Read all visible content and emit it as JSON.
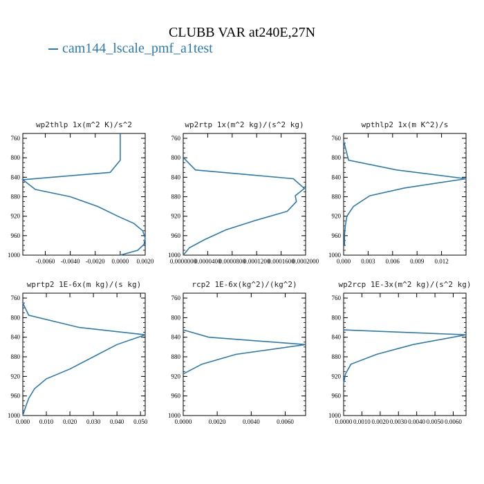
{
  "figure": {
    "title": "CLUBB VAR at240E,27N",
    "legend": [
      {
        "label": "cam144_lscale_pmf_a1test",
        "color": "#2a7ab0"
      }
    ],
    "line_color": "#2a7ab0"
  },
  "chart_data": [
    {
      "type": "line",
      "title": "wp2thlp  1x(m^2 K)/s^2",
      "xlim": [
        -0.0078,
        0.002
      ],
      "ylim": [
        1000,
        750
      ],
      "x_ticks": [
        -0.006,
        -0.004,
        -0.002,
        0.0,
        0.002
      ],
      "x_tick_labels": [
        "-0.0060",
        "-0.0040",
        "-0.0020",
        "0.0000",
        "0.0020"
      ],
      "y_ticks": [
        760,
        800,
        840,
        880,
        920,
        960,
        1000
      ],
      "series": [
        {
          "x": [
            0.0,
            0.0,
            -0.0008,
            -0.0078,
            -0.0068,
            -0.004,
            -0.0018,
            -0.0002,
            0.0011,
            0.0018,
            0.002,
            0.0019,
            0.0014,
            0.0
          ],
          "y": [
            750,
            805,
            830,
            845,
            865,
            880,
            900,
            920,
            935,
            950,
            965,
            978,
            990,
            1000
          ]
        }
      ]
    },
    {
      "type": "line",
      "title": "wp2rtp  1x(m^2 kg)/(s^2 kg)",
      "xlim": [
        0,
        0.0002
      ],
      "ylim": [
        1000,
        750
      ],
      "x_ticks": [
        0,
        4e-05,
        8e-05,
        0.00012,
        0.00016,
        0.0002
      ],
      "x_tick_labels": [
        "0.0000000",
        "0.0000400",
        "0.0000800",
        "0.0001200",
        "0.0001600",
        "0.0002000"
      ],
      "y_ticks": [
        760,
        800,
        840,
        880,
        920,
        960,
        1000
      ],
      "series": [
        {
          "x": [
            5e-07,
            2e-05,
            0.00018,
            0.000198,
            0.000183,
            0.000185,
            0.00017,
            0.00012,
            7e-05,
            3.5e-05,
            1e-05,
            0.0
          ],
          "y": [
            800,
            825,
            843,
            863,
            878,
            890,
            910,
            928,
            948,
            968,
            985,
            1000
          ]
        }
      ]
    },
    {
      "type": "line",
      "title": "wpthlp2  1x(m K^2)/s",
      "xlim": [
        0,
        0.015
      ],
      "ylim": [
        1000,
        750
      ],
      "x_ticks": [
        0.0,
        0.003,
        0.006,
        0.009,
        0.012
      ],
      "x_tick_labels": [
        "0.000",
        "0.003",
        "0.006",
        "0.009",
        "0.012"
      ],
      "y_ticks": [
        760,
        800,
        840,
        880,
        920,
        960,
        1000
      ],
      "series": [
        {
          "x": [
            0.0,
            0.0006,
            0.0065,
            0.015,
            0.0075,
            0.0032,
            0.0012,
            0.0004,
            0.0002,
            0.0001,
            0.0001
          ],
          "y": [
            765,
            805,
            825,
            843,
            862,
            878,
            900,
            920,
            940,
            960,
            980
          ]
        }
      ]
    },
    {
      "type": "line",
      "title": "wprtp2  1E-6x(m kg)/(s kg)",
      "xlim": [
        0,
        0.052
      ],
      "ylim": [
        1000,
        750
      ],
      "x_ticks": [
        0.0,
        0.01,
        0.02,
        0.03,
        0.04,
        0.05
      ],
      "x_tick_labels": [
        "0.000",
        "0.010",
        "0.020",
        "0.030",
        "0.040",
        "0.050"
      ],
      "y_ticks": [
        760,
        800,
        840,
        880,
        920,
        960,
        1000
      ],
      "series": [
        {
          "x": [
            0.0,
            0.0025,
            0.024,
            0.052,
            0.04,
            0.03,
            0.02,
            0.01,
            0.005,
            0.0025,
            0.001,
            0.0
          ],
          "y": [
            770,
            795,
            820,
            835,
            855,
            880,
            905,
            925,
            945,
            965,
            985,
            1000
          ]
        }
      ]
    },
    {
      "type": "line",
      "title": "rcp2  1E-6x(kg^2)/(kg^2)",
      "xlim": [
        0,
        0.0072
      ],
      "ylim": [
        1000,
        750
      ],
      "x_ticks": [
        0.0,
        0.002,
        0.004,
        0.006
      ],
      "x_tick_labels": [
        "0.0000",
        "0.0020",
        "0.0040",
        "0.0060"
      ],
      "y_ticks": [
        760,
        800,
        840,
        880,
        920,
        960,
        1000
      ],
      "series": [
        {
          "x": [
            0.0,
            0.0015,
            0.0072,
            0.0031,
            0.0011,
            0.0
          ],
          "y": [
            825,
            840,
            855,
            875,
            895,
            915
          ]
        }
      ]
    },
    {
      "type": "line",
      "title": "wp2rcp  1E-3x(m^2 kg)/(s^2 kg)",
      "xlim": [
        0,
        0.0067
      ],
      "ylim": [
        1000,
        750
      ],
      "x_ticks": [
        0.0,
        0.001,
        0.002,
        0.003,
        0.004,
        0.005,
        0.006
      ],
      "x_tick_labels": [
        "0.0000",
        "0.0010",
        "0.0020",
        "0.0030",
        "0.0040",
        "0.0050",
        "0.0060"
      ],
      "y_ticks": [
        760,
        800,
        840,
        880,
        920,
        960,
        1000
      ],
      "series": [
        {
          "x": [
            0.0,
            0.0067,
            0.0038,
            0.0018,
            0.0004,
            0.0001,
            0.0
          ],
          "y": [
            825,
            835,
            855,
            875,
            895,
            915,
            935
          ]
        }
      ]
    }
  ]
}
